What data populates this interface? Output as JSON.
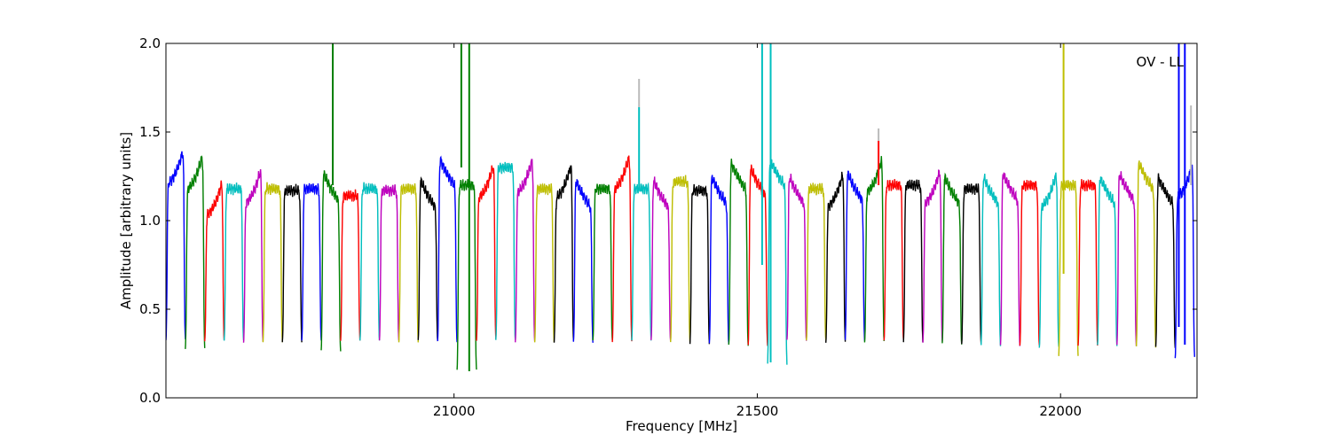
{
  "chart_data": {
    "type": "line",
    "title": "",
    "annotation": "OV - LL",
    "xlabel": "Frequency [MHz]",
    "ylabel": "Amplitude [arbitrary units]",
    "xlim": [
      20525,
      22225
    ],
    "ylim": [
      0.0,
      2.0
    ],
    "xticks": [
      21000,
      21500,
      22000
    ],
    "xtick_labels": [
      "21000",
      "21500",
      "22000"
    ],
    "yticks": [
      0.0,
      0.5,
      1.0,
      1.5,
      2.0
    ],
    "ytick_labels": [
      "0.0",
      "0.5",
      "1.0",
      "1.5",
      "2.0"
    ],
    "grid": false,
    "legend": "none",
    "color_cycle": [
      "#0000ff",
      "#008000",
      "#ff0000",
      "#00bfbf",
      "#bf00bf",
      "#bfbf00",
      "#000000"
    ],
    "overlay_color": "#bbbbbb",
    "band_width_mhz": 32,
    "bands": [
      {
        "start": 20525,
        "level": 1.33,
        "shape": "rise",
        "min": 0.3,
        "color": "#0000ff"
      },
      {
        "start": 20557,
        "level": 1.3,
        "shape": "rise",
        "min": 0.25,
        "color": "#008000"
      },
      {
        "start": 20589,
        "level": 1.15,
        "shape": "rise",
        "min": 0.3,
        "color": "#ff0000"
      },
      {
        "start": 20621,
        "level": 1.18,
        "shape": "flat",
        "min": 0.3,
        "color": "#00bfbf"
      },
      {
        "start": 20653,
        "level": 1.22,
        "shape": "rise",
        "min": 0.29,
        "color": "#bf00bf"
      },
      {
        "start": 20685,
        "level": 1.18,
        "shape": "flat",
        "min": 0.29,
        "color": "#bfbf00"
      },
      {
        "start": 20717,
        "level": 1.17,
        "shape": "flat",
        "min": 0.29,
        "color": "#000000"
      },
      {
        "start": 20749,
        "level": 1.18,
        "shape": "flat",
        "min": 0.3,
        "color": "#0000ff"
      },
      {
        "start": 20781,
        "level": 1.22,
        "shape": "fall",
        "min": 0.24,
        "color": "#008000"
      },
      {
        "start": 20813,
        "level": 1.14,
        "shape": "flat",
        "min": 0.3,
        "color": "#ff0000"
      },
      {
        "start": 20845,
        "level": 1.18,
        "shape": "flat",
        "min": 0.3,
        "color": "#00bfbf"
      },
      {
        "start": 20877,
        "level": 1.17,
        "shape": "flat",
        "min": 0.3,
        "color": "#bf00bf"
      },
      {
        "start": 20909,
        "level": 1.18,
        "shape": "flat",
        "min": 0.29,
        "color": "#bfbf00"
      },
      {
        "start": 20941,
        "level": 1.18,
        "shape": "fall",
        "min": 0.3,
        "color": "#000000"
      },
      {
        "start": 20973,
        "level": 1.3,
        "shape": "fall",
        "min": 0.29,
        "color": "#0000ff"
      },
      {
        "start": 21005,
        "level": 1.2,
        "shape": "flat",
        "min": 0.13,
        "color": "#008000"
      },
      {
        "start": 21037,
        "level": 1.25,
        "shape": "rise",
        "min": 0.3,
        "color": "#ff0000"
      },
      {
        "start": 21069,
        "level": 1.3,
        "shape": "flat",
        "min": 0.3,
        "color": "#00bfbf"
      },
      {
        "start": 21101,
        "level": 1.28,
        "shape": "rise",
        "min": 0.29,
        "color": "#bf00bf"
      },
      {
        "start": 21133,
        "level": 1.18,
        "shape": "flat",
        "min": 0.29,
        "color": "#bfbf00"
      },
      {
        "start": 21165,
        "level": 1.25,
        "shape": "rise",
        "min": 0.29,
        "color": "#000000"
      },
      {
        "start": 21197,
        "level": 1.18,
        "shape": "fall",
        "min": 0.29,
        "color": "#0000ff"
      },
      {
        "start": 21229,
        "level": 1.18,
        "shape": "flat",
        "min": 0.3,
        "color": "#008000"
      },
      {
        "start": 21261,
        "level": 1.3,
        "shape": "rise",
        "min": 0.29,
        "color": "#ff0000"
      },
      {
        "start": 21293,
        "level": 1.18,
        "shape": "flat",
        "min": 0.3,
        "color": "#00bfbf"
      },
      {
        "start": 21325,
        "level": 1.18,
        "shape": "fall",
        "min": 0.3,
        "color": "#bf00bf"
      },
      {
        "start": 21357,
        "level": 1.22,
        "shape": "flat",
        "min": 0.29,
        "color": "#bfbf00"
      },
      {
        "start": 21389,
        "level": 1.17,
        "shape": "flat",
        "min": 0.28,
        "color": "#000000"
      },
      {
        "start": 21421,
        "level": 1.2,
        "shape": "fall",
        "min": 0.28,
        "color": "#0000ff"
      },
      {
        "start": 21453,
        "level": 1.28,
        "shape": "fall",
        "min": 0.27,
        "color": "#008000"
      },
      {
        "start": 21485,
        "level": 1.25,
        "shape": "fall",
        "min": 0.27,
        "color": "#ff0000"
      },
      {
        "start": 21517,
        "level": 1.3,
        "shape": "fall",
        "min": 0.16,
        "color": "#00bfbf"
      },
      {
        "start": 21549,
        "level": 1.2,
        "shape": "fall",
        "min": 0.3,
        "color": "#bf00bf"
      },
      {
        "start": 21581,
        "level": 1.18,
        "shape": "flat",
        "min": 0.3,
        "color": "#bfbf00"
      },
      {
        "start": 21613,
        "level": 1.2,
        "shape": "rise",
        "min": 0.29,
        "color": "#000000"
      },
      {
        "start": 21645,
        "level": 1.22,
        "shape": "fall",
        "min": 0.3,
        "color": "#0000ff"
      },
      {
        "start": 21677,
        "level": 1.28,
        "shape": "rise",
        "min": 0.29,
        "color": "#008000"
      },
      {
        "start": 21709,
        "level": 1.2,
        "shape": "flat",
        "min": 0.3,
        "color": "#ff0000"
      },
      {
        "start": 21741,
        "level": 1.2,
        "shape": "flat",
        "min": 0.29,
        "color": "#000000"
      },
      {
        "start": 21773,
        "level": 1.22,
        "shape": "rise",
        "min": 0.29,
        "color": "#bf00bf"
      },
      {
        "start": 21805,
        "level": 1.2,
        "shape": "fall",
        "min": 0.28,
        "color": "#008000"
      },
      {
        "start": 21837,
        "level": 1.18,
        "shape": "flat",
        "min": 0.28,
        "color": "#000000"
      },
      {
        "start": 21869,
        "level": 1.2,
        "shape": "fall",
        "min": 0.27,
        "color": "#00bfbf"
      },
      {
        "start": 21901,
        "level": 1.22,
        "shape": "fall",
        "min": 0.27,
        "color": "#bf00bf"
      },
      {
        "start": 21933,
        "level": 1.2,
        "shape": "flat",
        "min": 0.27,
        "color": "#ff0000"
      },
      {
        "start": 21965,
        "level": 1.2,
        "shape": "rise",
        "min": 0.26,
        "color": "#00bfbf"
      },
      {
        "start": 21997,
        "level": 1.2,
        "shape": "flat",
        "min": 0.21,
        "color": "#bfbf00"
      },
      {
        "start": 22029,
        "level": 1.2,
        "shape": "flat",
        "min": 0.27,
        "color": "#ff0000"
      },
      {
        "start": 22061,
        "level": 1.2,
        "shape": "fall",
        "min": 0.27,
        "color": "#00bfbf"
      },
      {
        "start": 22093,
        "level": 1.22,
        "shape": "fall",
        "min": 0.27,
        "color": "#bf00bf"
      },
      {
        "start": 22125,
        "level": 1.28,
        "shape": "fall",
        "min": 0.26,
        "color": "#bfbf00"
      },
      {
        "start": 22157,
        "level": 1.2,
        "shape": "fall",
        "min": 0.26,
        "color": "#000000"
      },
      {
        "start": 22189,
        "level": 1.25,
        "shape": "rise",
        "min": 0.2,
        "color": "#0000ff"
      }
    ],
    "spikes": [
      {
        "x": 20800,
        "y": 2.0,
        "base": 1.2,
        "color": "#008000"
      },
      {
        "x": 21012,
        "y": 2.0,
        "base": 1.3,
        "color": "#008000"
      },
      {
        "x": 21025,
        "y": 2.0,
        "base": 0.15,
        "color": "#008000"
      },
      {
        "x": 21305,
        "y": 1.64,
        "base": 1.18,
        "color": "#00bfbf"
      },
      {
        "x": 21305,
        "y": 1.8,
        "base": 1.64,
        "color": "#bbbbbb"
      },
      {
        "x": 21508,
        "y": 2.0,
        "base": 0.75,
        "color": "#00bfbf"
      },
      {
        "x": 21522,
        "y": 2.0,
        "base": 0.2,
        "color": "#00bfbf"
      },
      {
        "x": 21700,
        "y": 1.45,
        "base": 1.2,
        "color": "#ff0000"
      },
      {
        "x": 21700,
        "y": 1.52,
        "base": 1.45,
        "color": "#bbbbbb"
      },
      {
        "x": 22005,
        "y": 2.0,
        "base": 0.7,
        "color": "#bfbf00"
      },
      {
        "x": 22195,
        "y": 2.0,
        "base": 0.4,
        "color": "#0000ff"
      },
      {
        "x": 22205,
        "y": 2.0,
        "base": 0.3,
        "color": "#0000ff"
      },
      {
        "x": 22215,
        "y": 1.65,
        "base": 1.2,
        "color": "#bbbbbb"
      }
    ]
  }
}
